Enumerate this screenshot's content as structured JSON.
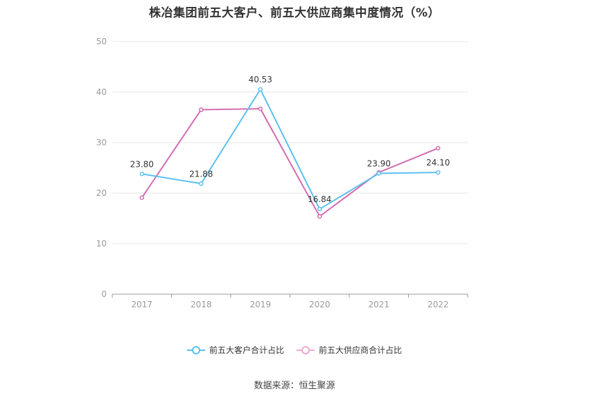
{
  "title": "株冶集团前五大客户、前五大供应商集中度情况（%）",
  "source": "数据来源：恒生聚源",
  "colors": {
    "customers": "#5bc0f0",
    "suppliers": "#d56bb0",
    "grid": "#e6e6e6",
    "axis": "#999999",
    "tick_text": "#999999"
  },
  "chart_data": {
    "type": "line",
    "title": "株冶集团前五大客户、前五大供应商集中度情况（%）",
    "x": [
      "2017",
      "2018",
      "2019",
      "2020",
      "2021",
      "2022"
    ],
    "ylim": [
      0,
      50
    ],
    "yticks": [
      0,
      10,
      20,
      30,
      40,
      50
    ],
    "grid": true,
    "legend": "bottom",
    "series": [
      {
        "name": "前五大客户合计占比",
        "values": [
          23.8,
          21.88,
          40.53,
          16.84,
          23.9,
          24.1
        ],
        "labels": [
          "23.80",
          "21.88",
          "40.53",
          "16.84",
          "23.90",
          "24.10"
        ]
      },
      {
        "name": "前五大供应商合计占比",
        "values": [
          19.1,
          36.5,
          36.7,
          15.4,
          24.1,
          28.9
        ]
      }
    ]
  }
}
